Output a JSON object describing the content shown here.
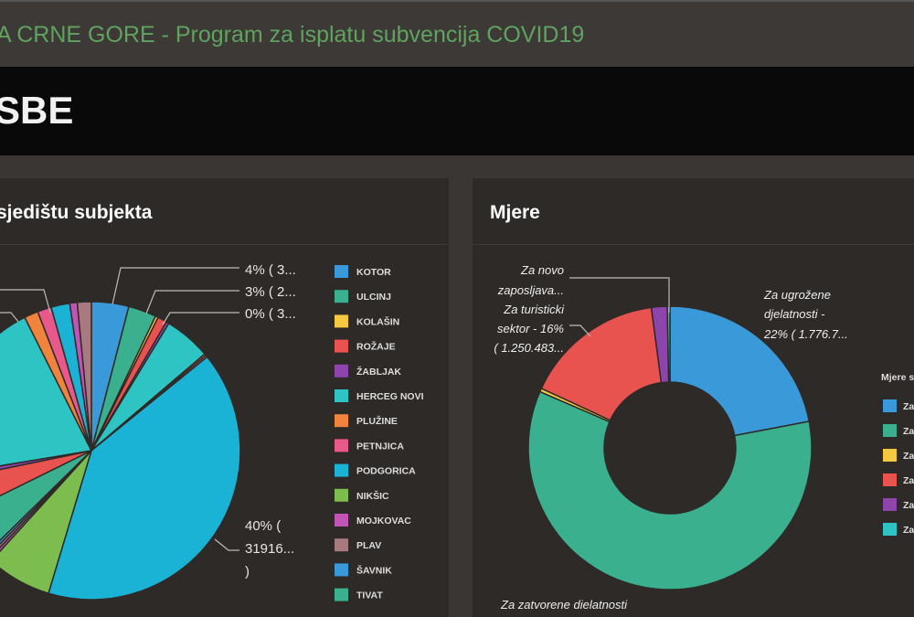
{
  "header": {
    "title": "A CRNE GORE - Program za isplatu subvencija COVID19",
    "subtitle": "SBE"
  },
  "panels": [
    {
      "title": "sjedištu subjekta"
    },
    {
      "title": "Mjere"
    }
  ],
  "chart_data": [
    {
      "type": "pie",
      "title": "sjedištu subjekta",
      "legend_position": "right",
      "legend": [
        "KOTOR",
        "ULCINJ",
        "KOLAŠIN",
        "ROŽAJE",
        "ŽABLJAK",
        "HERCEG NOVI",
        "PLUŽINE",
        "PETNJICA",
        "PODGORICA",
        "NIKŠIC",
        "MOJKOVAC",
        "PLAV",
        "ŠAVNIK",
        "TIVAT"
      ],
      "slices": [
        {
          "label": "KOTOR",
          "percent": 4,
          "color": "#3a9ad9",
          "data_label": "4% ( 3..."
        },
        {
          "label": "ULCINJ",
          "percent": 3,
          "color": "#3bb08f",
          "data_label": "3% ( 2..."
        },
        {
          "label": "KOLAŠIN",
          "percent": 0.3,
          "color": "#f5c842",
          "data_label": "0% ( 3..."
        },
        {
          "label": "ROŽAJE",
          "percent": 1,
          "color": "#e8524f"
        },
        {
          "label": "ŽABLJAK",
          "percent": 0.3,
          "color": "#8e44ad"
        },
        {
          "label": "HERCEG NOVI",
          "percent": 5,
          "color": "#2ec4c4"
        },
        {
          "label": "PLUŽINE",
          "percent": 0.2,
          "color": "#f0843c"
        },
        {
          "label": "PETNJICA",
          "percent": 0.2,
          "color": "#e8588a"
        },
        {
          "label": "PODGORICA",
          "percent": 40,
          "color": "#1ab3d6",
          "data_label": "40% ( 31916... )"
        },
        {
          "label": "NIKŠIC",
          "percent": 7,
          "color": "#7dbd4f"
        },
        {
          "label": "MOJKOVAC",
          "percent": 0.3,
          "color": "#c254b5"
        },
        {
          "label": "PLAV",
          "percent": 0.3,
          "color": "#a87a80"
        },
        {
          "label": "ŠAVNIK",
          "percent": 0.3,
          "color": "#3a9ad9"
        },
        {
          "label": "TIVAT",
          "percent": 5,
          "color": "#3bb08f"
        },
        {
          "percent": 4,
          "color": "#e8524f"
        },
        {
          "percent": 0.6,
          "color": "#8e44ad"
        },
        {
          "percent": 20,
          "color": "#2ec4c4"
        },
        {
          "percent": 1.5,
          "color": "#f0843c"
        },
        {
          "percent": 1.5,
          "color": "#e8588a"
        },
        {
          "percent": 2,
          "color": "#1ab3d6"
        },
        {
          "percent": 0.8,
          "color": "#c254b5"
        },
        {
          "percent": 1.5,
          "color": "#a87a80"
        }
      ]
    },
    {
      "type": "pie",
      "style": "donut",
      "title": "Mjere",
      "legend_title": "Mjere s...",
      "legend_position": "right",
      "legend": [
        "Za...",
        "Za...",
        "Za...",
        "Za...",
        "Za...",
        "Za..."
      ],
      "slices": [
        {
          "percent": 22,
          "color": "#3a9ad9",
          "data_label": "Za ugrožene djelatnosti - 22% ( 1.776.7..."
        },
        {
          "percent": 59.5,
          "color": "#3bb08f",
          "data_label": "Za zatvorene djelatnosti"
        },
        {
          "percent": 0.4,
          "color": "#f5c842"
        },
        {
          "percent": 16,
          "color": "#e8524f",
          "data_label": "Za turisticki sektor - 16% ( 1.250.483..."
        },
        {
          "percent": 1.8,
          "color": "#8e44ad",
          "data_label": "Za novo zaposljava..."
        },
        {
          "percent": 0.3,
          "color": "#2ec4c4"
        }
      ]
    }
  ]
}
